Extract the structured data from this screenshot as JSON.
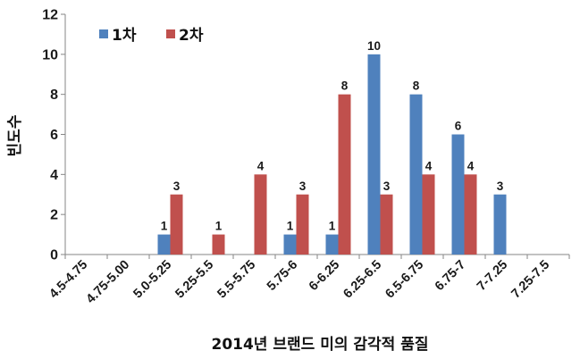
{
  "chart_data": {
    "type": "bar",
    "categories": [
      "4.5-4.75",
      "4.75-5.00",
      "5.0-5.25",
      "5.25-5.5",
      "5.5-5.75",
      "5.75-6",
      "6-6.25",
      "6.25-6.5",
      "6.5-6.75",
      "6.75-7",
      "7-7.25",
      "7.25-7.5"
    ],
    "series": [
      {
        "name": "1차",
        "color": "#4F81BD",
        "values": [
          0,
          0,
          1,
          0,
          0,
          1,
          1,
          10,
          8,
          6,
          3,
          0
        ]
      },
      {
        "name": "2차",
        "color": "#C0504D",
        "values": [
          0,
          0,
          3,
          1,
          4,
          3,
          8,
          3,
          4,
          4,
          0,
          0
        ]
      }
    ],
    "ylim": [
      0,
      12
    ],
    "yticks": [
      "0",
      "2",
      "4",
      "6",
      "8",
      "10",
      "12"
    ],
    "xlabel": "2014년 브랜드 미의 감각적 품질",
    "ylabel": "빈도수",
    "legend_position": "top-left",
    "grid": false
  }
}
